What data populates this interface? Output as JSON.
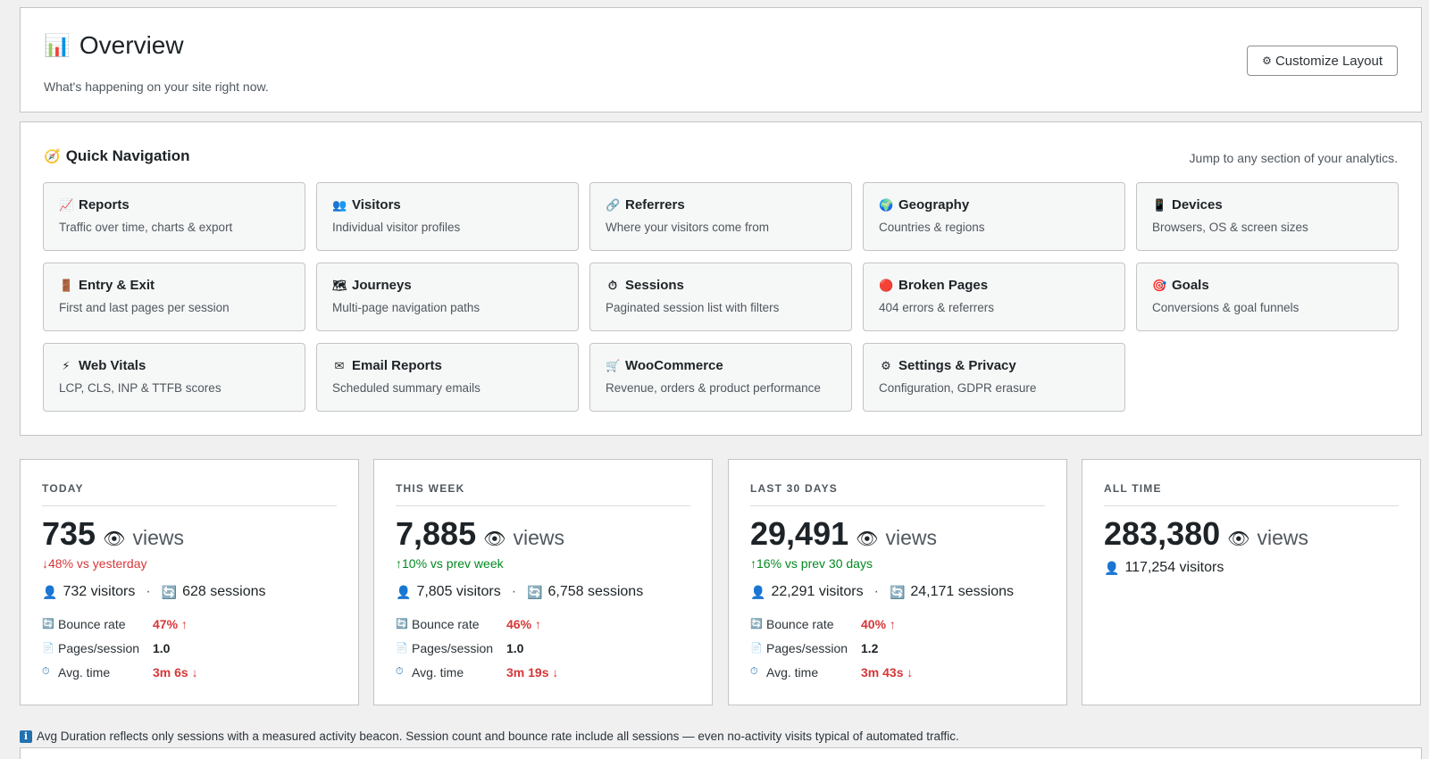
{
  "header": {
    "icon": "📊",
    "title": "Overview",
    "subtitle": "What's happening on your site right now.",
    "customize_icon": "⚙",
    "customize_label": "Customize Layout"
  },
  "quick_nav": {
    "icon": "🧭",
    "title": "Quick Navigation",
    "hint": "Jump to any section of your analytics.",
    "items": [
      {
        "icon": "📈",
        "title": "Reports",
        "desc": "Traffic over time, charts & export"
      },
      {
        "icon": "👥",
        "title": "Visitors",
        "desc": "Individual visitor profiles"
      },
      {
        "icon": "🔗",
        "title": "Referrers",
        "desc": "Where your visitors come from"
      },
      {
        "icon": "🌍",
        "title": "Geography",
        "desc": "Countries & regions"
      },
      {
        "icon": "📱",
        "title": "Devices",
        "desc": "Browsers, OS & screen sizes"
      },
      {
        "icon": "🚪",
        "title": "Entry & Exit",
        "desc": "First and last pages per session"
      },
      {
        "icon": "🗺",
        "title": "Journeys",
        "desc": "Multi-page navigation paths"
      },
      {
        "icon": "⏱",
        "title": "Sessions",
        "desc": "Paginated session list with filters"
      },
      {
        "icon": "🔴",
        "title": "Broken Pages",
        "desc": "404 errors & referrers"
      },
      {
        "icon": "🎯",
        "title": "Goals",
        "desc": "Conversions & goal funnels"
      },
      {
        "icon": "⚡",
        "title": "Web Vitals",
        "desc": "LCP, CLS, INP & TTFB scores"
      },
      {
        "icon": "✉",
        "title": "Email Reports",
        "desc": "Scheduled summary emails"
      },
      {
        "icon": "🛒",
        "title": "WooCommerce",
        "desc": "Revenue, orders & product performance"
      },
      {
        "icon": "⚙",
        "title": "Settings & Privacy",
        "desc": "Configuration, GDPR erasure"
      }
    ]
  },
  "stats": [
    {
      "label": "TODAY",
      "views": "735",
      "eye_icon": "👁",
      "unit": "views",
      "change": "↓48% vs yesterday",
      "change_dir": "down",
      "visitors_icon": "👤",
      "visitors": "732 visitors",
      "sessions_icon": "🔄",
      "sessions": "628 sessions",
      "metrics": [
        {
          "icon": "🔄",
          "label": "Bounce rate",
          "value": "47% ↑",
          "bad": true
        },
        {
          "icon": "📄",
          "label": "Pages/session",
          "value": "1.0",
          "bad": false
        },
        {
          "icon": "⏱",
          "label": "Avg. time",
          "value": "3m 6s ↓",
          "bad": true
        }
      ]
    },
    {
      "label": "THIS WEEK",
      "views": "7,885",
      "eye_icon": "👁",
      "unit": "views",
      "change": "↑10% vs prev week",
      "change_dir": "up",
      "visitors_icon": "👤",
      "visitors": "7,805 visitors",
      "sessions_icon": "🔄",
      "sessions": "6,758 sessions",
      "metrics": [
        {
          "icon": "🔄",
          "label": "Bounce rate",
          "value": "46% ↑",
          "bad": true
        },
        {
          "icon": "📄",
          "label": "Pages/session",
          "value": "1.0",
          "bad": false
        },
        {
          "icon": "⏱",
          "label": "Avg. time",
          "value": "3m 19s ↓",
          "bad": true
        }
      ]
    },
    {
      "label": "LAST 30 DAYS",
      "views": "29,491",
      "eye_icon": "👁",
      "unit": "views",
      "change": "↑16% vs prev 30 days",
      "change_dir": "up",
      "visitors_icon": "👤",
      "visitors": "22,291 visitors",
      "sessions_icon": "🔄",
      "sessions": "24,171 sessions",
      "metrics": [
        {
          "icon": "🔄",
          "label": "Bounce rate",
          "value": "40% ↑",
          "bad": true
        },
        {
          "icon": "📄",
          "label": "Pages/session",
          "value": "1.2",
          "bad": false
        },
        {
          "icon": "⏱",
          "label": "Avg. time",
          "value": "3m 43s ↓",
          "bad": true
        }
      ]
    },
    {
      "label": "ALL TIME",
      "views": "283,380",
      "eye_icon": "👁",
      "unit": "views",
      "visitors_icon": "👤",
      "visitors": "117,254 visitors"
    }
  ],
  "footnote": {
    "icon": "i",
    "text": "Avg Duration reflects only sessions with a measured activity beacon. Session count and bounce rate include all sessions — even no-activity visits typical of automated traffic."
  },
  "colors": {
    "background": "#f0f0f1",
    "border": "#c3c4c7",
    "negative": "#d63638",
    "positive": "#008a20",
    "accent": "#2271b1"
  }
}
